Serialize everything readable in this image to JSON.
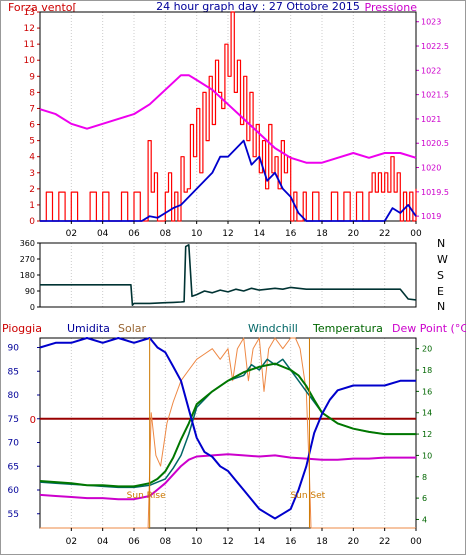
{
  "header": {
    "title": "24 hour graph day : 27 Ottobre 2015"
  },
  "colors": {
    "wind": "#ff0000",
    "wind_avg": "#0000cc",
    "pressure": "#ee00ee",
    "direction": "#003333",
    "humidity": "#0000cc",
    "solar": "#ee8844",
    "windchill": "#006666",
    "temperature": "#007700",
    "dewpoint": "#cc00cc",
    "rain": "#990000",
    "sunrise_sunset": "#cc7700"
  },
  "chart_data": [
    {
      "type": "line",
      "left_label": "Forza vento[",
      "right_label": "Pressione",
      "x_unit": "hour",
      "xticks": [
        "02",
        "04",
        "06",
        "08",
        "10",
        "12",
        "14",
        "16",
        "18",
        "20",
        "22",
        "00"
      ],
      "y_left_ticks": [
        "0",
        "1",
        "2",
        "3",
        "4",
        "5",
        "6",
        "7",
        "8",
        "9",
        "10",
        "11",
        "12",
        "13"
      ],
      "y_left_lim": [
        0,
        13
      ],
      "y_right_ticks": [
        "1019",
        "1019.5",
        "1020",
        "1020.5",
        "1021",
        "1021.5",
        "1022",
        "1022.5",
        "1023"
      ],
      "y_right_lim": [
        1018.9,
        1023.2
      ],
      "series": [
        {
          "key": "wind_gust",
          "axis": "left",
          "x": [
            0,
            0.4,
            0.8,
            1.2,
            1.6,
            2,
            2.4,
            2.8,
            3.2,
            3.6,
            4,
            4.4,
            4.8,
            5.2,
            5.6,
            6,
            6.4,
            6.7,
            6.9,
            7.1,
            7.3,
            7.5,
            7.8,
            8,
            8.2,
            8.4,
            8.6,
            8.8,
            9,
            9.2,
            9.4,
            9.6,
            9.8,
            10,
            10.2,
            10.4,
            10.6,
            10.8,
            11,
            11.2,
            11.4,
            11.6,
            11.8,
            12,
            12.2,
            12.4,
            12.6,
            12.8,
            13,
            13.2,
            13.4,
            13.6,
            13.8,
            14,
            14.2,
            14.4,
            14.6,
            14.8,
            15,
            15.2,
            15.4,
            15.6,
            15.8,
            16,
            16.2,
            16.4,
            16.6,
            16.8,
            17,
            17.4,
            17.8,
            18.2,
            18.6,
            19,
            19.4,
            19.8,
            20.2,
            20.6,
            21,
            21.2,
            21.4,
            21.6,
            21.8,
            22,
            22.2,
            22.4,
            22.6,
            22.8,
            23,
            23.2,
            23.4,
            23.6,
            23.8,
            24
          ],
          "y": [
            0,
            1.8,
            0,
            1.8,
            0,
            1.8,
            0,
            0,
            1.8,
            0,
            1.8,
            0,
            0,
            1.8,
            0,
            1.8,
            0,
            0,
            5,
            1.8,
            3,
            0,
            0,
            1.8,
            3,
            0,
            1.8,
            0,
            4,
            1.8,
            2,
            6,
            4,
            7,
            3,
            8,
            5,
            9,
            6,
            10,
            8,
            7,
            11,
            9,
            13,
            8,
            10,
            6,
            9,
            5,
            8,
            4,
            6,
            3,
            5,
            2,
            6,
            3,
            4,
            2,
            5,
            3,
            4,
            0,
            1.8,
            0,
            0,
            1.8,
            0,
            1.8,
            0,
            0,
            1.8,
            0,
            1.8,
            0,
            1.8,
            0,
            1.8,
            3,
            1.8,
            3,
            1.8,
            3,
            1.8,
            4,
            1.8,
            3,
            0,
            1.8,
            0,
            1.8,
            0,
            2
          ]
        },
        {
          "key": "wind_avg",
          "axis": "left",
          "x": [
            0,
            6.5,
            7,
            7.5,
            8,
            8.5,
            9,
            9.5,
            10,
            10.5,
            11,
            11.5,
            12,
            12.5,
            13,
            13.5,
            14,
            14.5,
            15,
            15.5,
            16,
            16.5,
            17,
            22,
            22.5,
            23,
            23.5,
            24
          ],
          "y": [
            0,
            0,
            0.3,
            0.2,
            0.5,
            0.8,
            1,
            1.5,
            2,
            2.5,
            3,
            4,
            4,
            4.5,
            5,
            3.5,
            4,
            2.5,
            3,
            2,
            1.5,
            0.5,
            0,
            0,
            0.8,
            0.5,
            1,
            0.3
          ]
        },
        {
          "key": "pressure",
          "axis": "right",
          "x": [
            0,
            1,
            2,
            3,
            4,
            5,
            6,
            7,
            8,
            9,
            9.5,
            10,
            11,
            12,
            13,
            14,
            15,
            16,
            17,
            18,
            19,
            20,
            21,
            22,
            23,
            24
          ],
          "y": [
            1021.2,
            1021.1,
            1020.9,
            1020.8,
            1020.9,
            1021,
            1021.1,
            1021.3,
            1021.6,
            1021.9,
            1021.9,
            1021.8,
            1021.6,
            1021.3,
            1021,
            1020.7,
            1020.4,
            1020.2,
            1020.1,
            1020.1,
            1020.2,
            1020.3,
            1020.2,
            1020.3,
            1020.3,
            1020.2
          ]
        }
      ]
    },
    {
      "type": "line",
      "right_axis_labels": [
        "N",
        "W",
        "S",
        "E",
        "N"
      ],
      "x_unit": "hour",
      "y_ticks": [
        "0",
        "90",
        "180",
        "270",
        "360"
      ],
      "ylim": [
        0,
        360
      ],
      "series": [
        {
          "key": "wind_direction",
          "x": [
            0,
            5.8,
            5.9,
            6,
            6.5,
            7,
            7.5,
            8,
            8.5,
            9,
            9.2,
            9.3,
            9.5,
            9.7,
            10,
            10.5,
            11,
            11.5,
            12,
            12.5,
            13,
            13.5,
            14,
            14.5,
            15,
            15.5,
            16,
            17,
            18,
            19,
            20,
            21,
            22,
            23,
            23.5,
            24
          ],
          "y": [
            125,
            125,
            10,
            20,
            20,
            20,
            22,
            24,
            26,
            28,
            30,
            340,
            350,
            60,
            70,
            90,
            80,
            95,
            85,
            100,
            90,
            105,
            95,
            100,
            105,
            100,
            110,
            100,
            100,
            100,
            100,
            100,
            100,
            100,
            45,
            40
          ]
        }
      ]
    },
    {
      "type": "line",
      "labels": {
        "rain": "Pioggia",
        "humidity": "Umidita",
        "solar": "Solar",
        "windchill": "Windchill",
        "temperature": "Temperatura",
        "dewpoint": "Dew Point (°C)"
      },
      "x_unit": "hour",
      "xticks": [
        "02",
        "04",
        "06",
        "08",
        "10",
        "12",
        "14",
        "16",
        "18",
        "20",
        "22",
        "00"
      ],
      "y_left_ticks": [
        "55",
        "60",
        "65",
        "70",
        "75",
        "80",
        "85",
        "90"
      ],
      "y_left_lim": [
        52,
        92
      ],
      "y_right_ticks": [
        "4",
        "6",
        "8",
        "10",
        "12",
        "14",
        "16",
        "18",
        "20"
      ],
      "y_right_lim": [
        3.2,
        21
      ],
      "rain_marker": "0",
      "sunrise_label": "Sun Rise",
      "sunset_label": "Sun Set",
      "sunrise_hour": 7,
      "sunset_hour": 17.2,
      "series": [
        {
          "key": "humidity",
          "axis": "left",
          "x": [
            0,
            1,
            2,
            3,
            4,
            5,
            6,
            7,
            7.5,
            8,
            8.5,
            9,
            9.5,
            10,
            10.5,
            11,
            11.5,
            12,
            12.5,
            13,
            13.5,
            14,
            14.5,
            15,
            15.5,
            16,
            16.5,
            17,
            17.5,
            18,
            18.5,
            19,
            20,
            21,
            22,
            23,
            24
          ],
          "y": [
            90,
            91,
            91,
            92,
            91,
            92,
            91,
            92,
            90,
            89,
            86,
            83,
            77,
            71,
            68,
            67,
            65,
            64,
            62,
            60,
            58,
            56,
            55,
            54,
            55,
            56,
            60,
            65,
            72,
            76,
            79,
            81,
            82,
            82,
            82,
            83,
            83
          ]
        },
        {
          "key": "solar",
          "axis": "right",
          "x": [
            0,
            6.9,
            7.1,
            7.4,
            7.7,
            7.9,
            8.1,
            8.5,
            9,
            9.5,
            10,
            10.5,
            11,
            11.5,
            12,
            12.3,
            12.6,
            13,
            13.3,
            13.6,
            14,
            14.3,
            14.6,
            15,
            15.5,
            16,
            16.3,
            16.6,
            17,
            17.2,
            17.3,
            18,
            24
          ],
          "y": [
            3.2,
            3.2,
            14,
            10,
            9,
            11,
            13,
            15,
            17,
            18,
            19,
            19.5,
            20,
            19,
            20,
            17,
            20,
            21,
            17,
            20,
            21,
            16,
            20,
            21,
            20,
            21,
            21,
            20,
            16,
            8,
            3.2,
            3.2,
            3.2
          ]
        },
        {
          "key": "windchill",
          "axis": "right",
          "x": [
            0,
            1,
            2,
            3,
            4,
            5,
            6,
            7,
            8,
            8.5,
            9,
            9.5,
            10,
            11,
            12,
            13,
            13.5,
            14,
            14.5,
            15,
            15.5,
            16,
            16.5,
            17,
            17.5,
            18,
            19,
            20,
            21,
            22,
            23,
            24
          ],
          "y": [
            7.5,
            7.4,
            7.3,
            7.2,
            7.1,
            7,
            7,
            7.2,
            7.8,
            8.8,
            10,
            12,
            14.5,
            16,
            17,
            17.5,
            18.5,
            18,
            19,
            18.5,
            19,
            18,
            17,
            16,
            15,
            14,
            13,
            12.5,
            12.2,
            12,
            12,
            12
          ]
        },
        {
          "key": "temperature",
          "axis": "right",
          "x": [
            0,
            1,
            2,
            3,
            4,
            5,
            6,
            7,
            7.5,
            8,
            8.5,
            9,
            9.5,
            10,
            11,
            12,
            13,
            14,
            15,
            16,
            16.5,
            17,
            17.5,
            18,
            19,
            20,
            21,
            22,
            23,
            24
          ],
          "y": [
            7.6,
            7.5,
            7.4,
            7.2,
            7.2,
            7.1,
            7.1,
            7.4,
            7.8,
            8.5,
            9.8,
            11.5,
            13,
            14.8,
            16,
            17,
            17.8,
            18.3,
            18.6,
            18,
            17.5,
            16.5,
            15.2,
            14,
            13,
            12.5,
            12.2,
            12,
            12,
            12
          ]
        },
        {
          "key": "dewpoint",
          "axis": "right",
          "x": [
            0,
            1,
            2,
            3,
            4,
            5,
            6,
            7,
            7.5,
            8,
            8.5,
            9,
            9.5,
            10,
            11,
            12,
            13,
            14,
            15,
            16,
            17,
            18,
            19,
            20,
            21,
            22,
            23,
            24
          ],
          "y": [
            6.3,
            6.2,
            6.1,
            6,
            6,
            5.9,
            5.9,
            6.2,
            6.8,
            7.4,
            8.2,
            9,
            9.6,
            9.9,
            10,
            10.1,
            10,
            9.9,
            10,
            9.8,
            9.7,
            9.6,
            9.6,
            9.7,
            9.7,
            9.8,
            9.8,
            9.8
          ]
        }
      ]
    }
  ]
}
